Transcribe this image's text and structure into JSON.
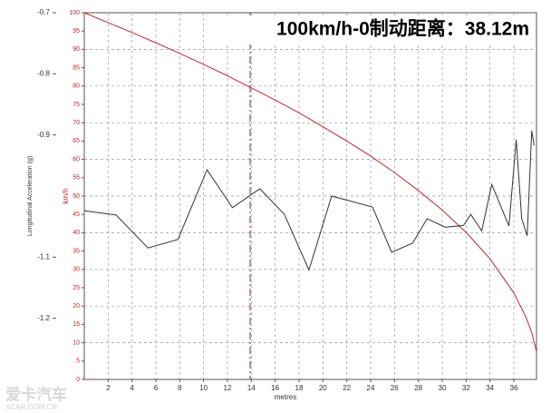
{
  "chart_data": {
    "type": "line",
    "title": "100km/h-0制动距离：38.12m",
    "x_label": "metres",
    "y_label": "Longitudinal Acceleration (g)",
    "y2_label": "km/h",
    "watermark": "爱卡汽车",
    "watermark_sub": "XCAR.COM.CN",
    "xlim": [
      0,
      37.9
    ],
    "xticks": [
      2,
      4,
      6,
      8,
      10,
      12,
      14,
      16,
      18,
      20,
      22,
      24,
      26,
      28,
      30,
      32,
      34,
      36
    ],
    "ylim": [
      -1.3,
      -0.7
    ],
    "yticks": [
      -0.7,
      -0.8,
      -0.9,
      -1.1,
      -1.2
    ],
    "y2lim": [
      0,
      100
    ],
    "y2ticks": [
      0,
      5,
      10,
      15,
      20,
      25,
      30,
      35,
      40,
      45,
      50,
      55,
      60,
      65,
      70,
      75,
      80,
      85,
      90,
      95,
      100
    ],
    "grid": true,
    "cursor_x": 13.9,
    "series": [
      {
        "name": "Speed",
        "color": "#c0282d",
        "axis": "y2",
        "x": [
          0,
          2,
          4,
          6,
          8,
          10,
          12,
          14,
          16,
          18,
          20,
          22,
          24,
          26,
          28,
          30,
          32,
          34,
          36,
          37,
          37.5,
          37.9
        ],
        "values": [
          100,
          97.3,
          94.6,
          91.8,
          88.9,
          85.9,
          82.8,
          79.5,
          76.2,
          72.7,
          68.9,
          65.0,
          60.9,
          56.4,
          51.5,
          46.2,
          40.1,
          32.9,
          23.6,
          17.1,
          12.8,
          7.6
        ]
      },
      {
        "name": "Acceleration",
        "color": "#333333",
        "x": [
          0,
          2.67,
          5.34,
          7.85,
          10.29,
          12.42,
          14.71,
          16.77,
          18.83,
          20.73,
          24.16,
          25.76,
          27.52,
          28.73,
          30.26,
          31.78,
          32.39,
          33.31,
          34.15,
          35.59,
          36.2,
          36.66,
          37.12,
          37.5,
          37.7
        ],
        "values": [
          -1.024,
          -1.031,
          -1.085,
          -1.071,
          -0.957,
          -1.019,
          -0.988,
          -1.03,
          -1.121,
          -1.0,
          -1.018,
          -1.092,
          -1.077,
          -1.037,
          -1.051,
          -1.048,
          -1.03,
          -1.057,
          -0.981,
          -1.049,
          -0.908,
          -1.037,
          -1.065,
          -0.893,
          -0.917
        ]
      }
    ]
  }
}
